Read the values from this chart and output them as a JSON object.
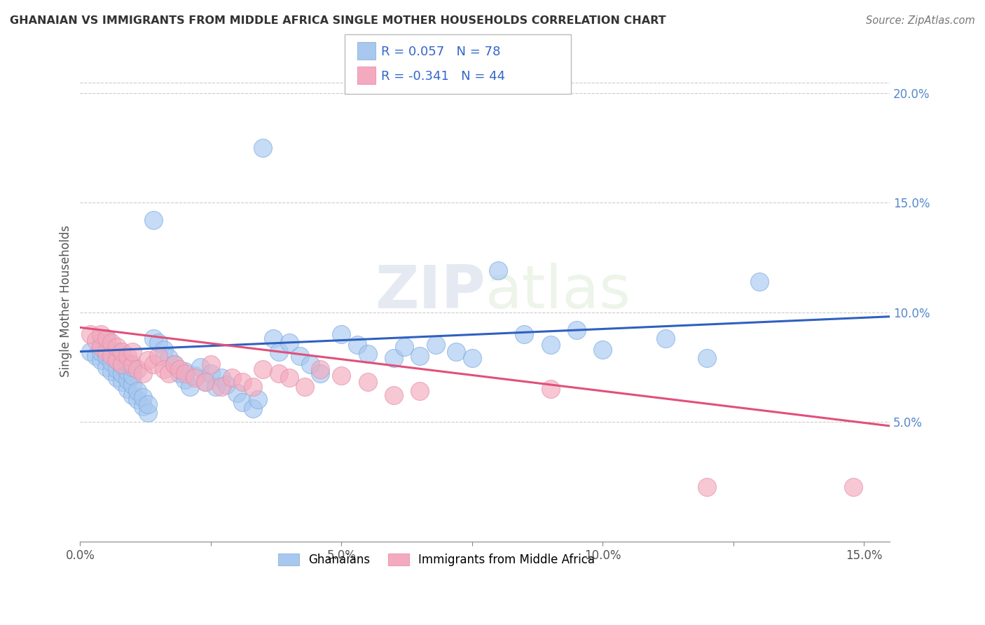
{
  "title": "GHANAIAN VS IMMIGRANTS FROM MIDDLE AFRICA SINGLE MOTHER HOUSEHOLDS CORRELATION CHART",
  "source": "Source: ZipAtlas.com",
  "ylabel": "Single Mother Households",
  "legend_label1": "Ghanaians",
  "legend_label2": "Immigrants from Middle Africa",
  "R1": 0.057,
  "N1": 78,
  "R2": -0.341,
  "N2": 44,
  "xlim": [
    0.0,
    0.155
  ],
  "ylim": [
    -0.005,
    0.215
  ],
  "xticks": [
    0.0,
    0.025,
    0.05,
    0.075,
    0.1,
    0.125,
    0.15
  ],
  "xtick_labels": [
    "0.0%",
    "",
    "5.0%",
    "",
    "10.0%",
    "",
    "15.0%"
  ],
  "yticks": [
    0.0,
    0.05,
    0.1,
    0.15,
    0.2
  ],
  "ytick_labels_right": [
    "",
    "5.0%",
    "10.0%",
    "15.0%",
    "20.0%"
  ],
  "color_blue": "#A8C8F0",
  "color_pink": "#F4AABE",
  "line_blue": "#3060C0",
  "line_pink": "#E0507A",
  "background": "#FFFFFF",
  "watermark_zip": "ZIP",
  "watermark_atlas": "atlas",
  "gh_line_y0": 0.082,
  "gh_line_y1": 0.098,
  "im_line_y0": 0.093,
  "im_line_y1": 0.048,
  "ghanaian_x": [
    0.002,
    0.003,
    0.004,
    0.004,
    0.004,
    0.005,
    0.005,
    0.005,
    0.005,
    0.006,
    0.006,
    0.006,
    0.007,
    0.007,
    0.007,
    0.007,
    0.008,
    0.008,
    0.008,
    0.009,
    0.009,
    0.009,
    0.009,
    0.01,
    0.01,
    0.01,
    0.01,
    0.011,
    0.011,
    0.012,
    0.012,
    0.013,
    0.013,
    0.014,
    0.014,
    0.015,
    0.016,
    0.017,
    0.018,
    0.019,
    0.02,
    0.02,
    0.021,
    0.022,
    0.023,
    0.024,
    0.025,
    0.026,
    0.027,
    0.028,
    0.03,
    0.031,
    0.033,
    0.034,
    0.035,
    0.037,
    0.038,
    0.04,
    0.042,
    0.044,
    0.046,
    0.05,
    0.053,
    0.055,
    0.06,
    0.062,
    0.065,
    0.068,
    0.072,
    0.075,
    0.08,
    0.085,
    0.09,
    0.095,
    0.1,
    0.112,
    0.12,
    0.13
  ],
  "ghanaian_y": [
    0.082,
    0.08,
    0.078,
    0.082,
    0.086,
    0.075,
    0.08,
    0.084,
    0.088,
    0.073,
    0.077,
    0.081,
    0.07,
    0.074,
    0.078,
    0.082,
    0.068,
    0.072,
    0.076,
    0.065,
    0.069,
    0.073,
    0.077,
    0.062,
    0.067,
    0.071,
    0.075,
    0.06,
    0.064,
    0.057,
    0.061,
    0.054,
    0.058,
    0.142,
    0.088,
    0.086,
    0.083,
    0.079,
    0.076,
    0.072,
    0.069,
    0.073,
    0.066,
    0.071,
    0.075,
    0.068,
    0.072,
    0.066,
    0.07,
    0.067,
    0.063,
    0.059,
    0.056,
    0.06,
    0.175,
    0.088,
    0.082,
    0.086,
    0.08,
    0.076,
    0.072,
    0.09,
    0.085,
    0.081,
    0.079,
    0.084,
    0.08,
    0.085,
    0.082,
    0.079,
    0.119,
    0.09,
    0.085,
    0.092,
    0.083,
    0.088,
    0.079,
    0.114
  ],
  "immigrant_x": [
    0.002,
    0.003,
    0.004,
    0.004,
    0.005,
    0.005,
    0.006,
    0.006,
    0.007,
    0.007,
    0.008,
    0.008,
    0.009,
    0.01,
    0.01,
    0.011,
    0.012,
    0.013,
    0.014,
    0.015,
    0.016,
    0.017,
    0.018,
    0.019,
    0.02,
    0.022,
    0.024,
    0.025,
    0.027,
    0.029,
    0.031,
    0.033,
    0.035,
    0.038,
    0.04,
    0.043,
    0.046,
    0.05,
    0.055,
    0.06,
    0.065,
    0.09,
    0.12,
    0.148
  ],
  "immigrant_y": [
    0.09,
    0.087,
    0.084,
    0.09,
    0.082,
    0.088,
    0.08,
    0.086,
    0.078,
    0.084,
    0.076,
    0.082,
    0.08,
    0.076,
    0.082,
    0.074,
    0.072,
    0.078,
    0.076,
    0.08,
    0.074,
    0.072,
    0.076,
    0.074,
    0.072,
    0.07,
    0.068,
    0.076,
    0.066,
    0.07,
    0.068,
    0.066,
    0.074,
    0.072,
    0.07,
    0.066,
    0.074,
    0.071,
    0.068,
    0.062,
    0.064,
    0.065,
    0.02,
    0.02
  ]
}
